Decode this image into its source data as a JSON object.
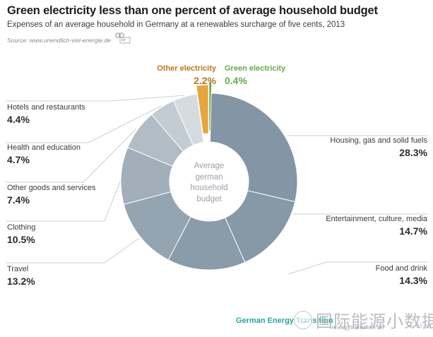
{
  "header": {
    "title": "Green electricity less than one percent of average household budget",
    "subtitle": "Expenses of an average household in Germany at a renewables surcharge of five cents, 2013",
    "source": "Source: www.unendlich-viel-energie.de"
  },
  "chart_data": {
    "type": "pie",
    "title": "Average german household budget",
    "center_label": "Average german household budget",
    "unit": "%",
    "start_angle_deg": 0,
    "direction": "clockwise",
    "slices": [
      {
        "label": "Green electricity",
        "value": 0.4,
        "color": "#62a84a",
        "label_color": "#6aa74e",
        "exploded": true
      },
      {
        "label": "Housing, gas and solid fuels",
        "value": 28.3,
        "color": "#8495a5"
      },
      {
        "label": "Entertainment, culture, media",
        "value": 14.7,
        "color": "#8798a6"
      },
      {
        "label": "Food and drink",
        "value": 14.3,
        "color": "#8a9ba9"
      },
      {
        "label": "Travel",
        "value": 13.2,
        "color": "#94a4b1"
      },
      {
        "label": "Clothing",
        "value": 10.5,
        "color": "#a2aeba"
      },
      {
        "label": "Other goods and services",
        "value": 7.4,
        "color": "#b2bcc5"
      },
      {
        "label": "Health and education",
        "value": 4.7,
        "color": "#c4ccd3"
      },
      {
        "label": "Hotels and restaurants",
        "value": 4.4,
        "color": "#d6dbdf"
      },
      {
        "label": "Other electricity",
        "value": 2.2,
        "color": "#e8a53e",
        "label_color": "#ba771d",
        "exploded": true
      }
    ]
  },
  "footer": {
    "brand": "German Energy Transition",
    "site": "energytransition.de",
    "license": "cc BY-SA",
    "watermark": "国际能源小数据"
  }
}
